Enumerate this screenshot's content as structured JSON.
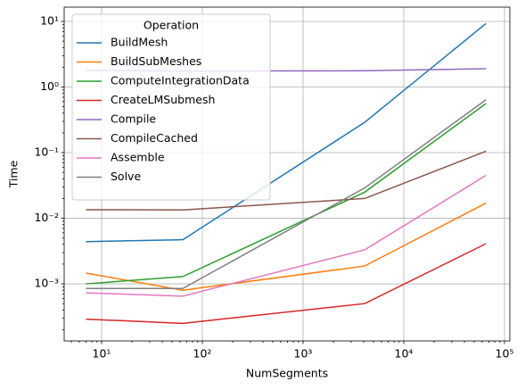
{
  "chart_data": {
    "type": "line",
    "x_label": "NumSegments",
    "y_label": "Time",
    "x": [
      7,
      64,
      4096,
      65536
    ],
    "series": [
      {
        "name": "BuildMesh",
        "color": "#1f77b4",
        "values": [
          0.0044,
          0.0047,
          0.29,
          9.3
        ]
      },
      {
        "name": "BuildSubMeshes",
        "color": "#ff7f0e",
        "values": [
          0.00146,
          0.0008,
          0.00187,
          0.017
        ]
      },
      {
        "name": "ComputeIntegrationData",
        "color": "#2ca02c",
        "values": [
          0.001,
          0.00129,
          0.025,
          0.56
        ]
      },
      {
        "name": "CreateLMSubmesh",
        "color": "#d62728",
        "values": [
          0.00029,
          0.00025,
          0.0005,
          0.0041
        ]
      },
      {
        "name": "Compile",
        "color": "#9467bd",
        "values": [
          1.8,
          1.75,
          1.77,
          1.9
        ]
      },
      {
        "name": "CompileCached",
        "color": "#8c564b",
        "values": [
          0.0135,
          0.0134,
          0.02,
          0.105
        ]
      },
      {
        "name": "Assemble",
        "color": "#e377c2",
        "values": [
          0.00073,
          0.00065,
          0.0033,
          0.045
        ]
      },
      {
        "name": "Solve",
        "color": "#7f7f7f",
        "values": [
          0.00085,
          0.00085,
          0.029,
          0.64
        ]
      }
    ],
    "legend_title": "Operation",
    "legend_position": "upper left",
    "xscale": "log",
    "yscale": "log",
    "grid": true,
    "xlim": [
      4.25,
      113000
    ],
    "ylim": [
      0.000135,
      16.5
    ],
    "xticks": [
      {
        "value": 10,
        "label": "10¹"
      },
      {
        "value": 100,
        "label": "10²"
      },
      {
        "value": 1000,
        "label": "10³"
      },
      {
        "value": 10000,
        "label": "10⁴"
      },
      {
        "value": 100000,
        "label": "10⁵"
      }
    ],
    "yticks": [
      {
        "value": 0.001,
        "label": "10⁻³"
      },
      {
        "value": 0.01,
        "label": "10⁻²"
      },
      {
        "value": 0.1,
        "label": "10⁻¹"
      },
      {
        "value": 1,
        "label": "10⁰"
      },
      {
        "value": 10,
        "label": "10¹"
      }
    ]
  }
}
